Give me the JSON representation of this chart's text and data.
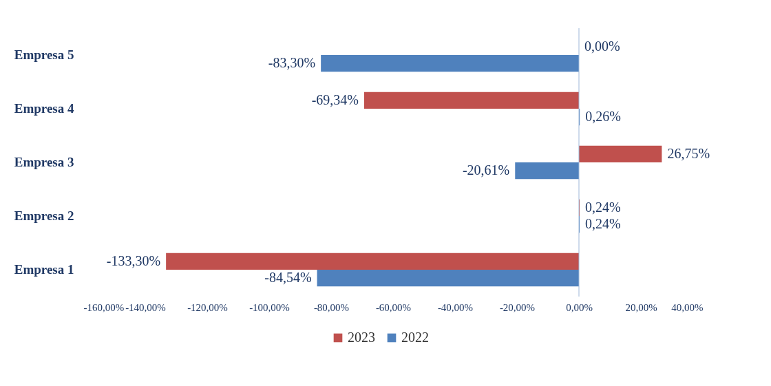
{
  "chart_data": {
    "type": "bar",
    "orientation": "horizontal",
    "categories": [
      "Empresa 5",
      "Empresa 4",
      "Empresa 3",
      "Empresa 2",
      "Empresa 1"
    ],
    "series": [
      {
        "name": "2023",
        "color": "#c0504d",
        "values": [
          0.0,
          -69.34,
          26.75,
          0.24,
          -133.3
        ],
        "value_labels": [
          "0,00%",
          "-69,34%",
          "26,75%",
          "0,24%",
          "-133,30%"
        ]
      },
      {
        "name": "2022",
        "color": "#4f81bd",
        "values": [
          -83.3,
          0.26,
          -20.61,
          0.24,
          -84.54
        ],
        "value_labels": [
          "-83,30%",
          "0,26%",
          "-20,61%",
          "0,24%",
          "-84,54%"
        ]
      }
    ],
    "xlim": [
      -160,
      40
    ],
    "xticks": [
      {
        "value": -160,
        "label": "-160,00%"
      },
      {
        "value": -140,
        "label": "-140,00%"
      },
      {
        "value": -120,
        "label": "-120,00%"
      },
      {
        "value": -100,
        "label": "-100,00%"
      },
      {
        "value": -80,
        "label": "-80,00%"
      },
      {
        "value": -60,
        "label": "-60,00%"
      },
      {
        "value": -40,
        "label": "-40,00%"
      },
      {
        "value": -20,
        "label": "-20,00%"
      },
      {
        "value": 0,
        "label": "0,00%"
      },
      {
        "value": 20,
        "label": "20,00%"
      },
      {
        "value": 40,
        "label": "40,00%"
      }
    ],
    "ref_lines": [
      {
        "axis": "x",
        "value": 0,
        "color": "#9db7d8"
      }
    ],
    "grid": false,
    "legend": "bottom"
  }
}
